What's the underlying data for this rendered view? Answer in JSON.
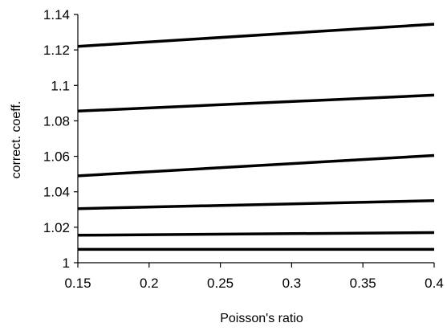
{
  "chart_data": {
    "type": "line",
    "title": "",
    "xlabel": "Poisson's ratio",
    "ylabel": "correct. coeff.",
    "xlim": [
      0.15,
      0.4
    ],
    "ylim": [
      1.0,
      1.14
    ],
    "x_ticks": [
      "0.15",
      "0.2",
      "0.25",
      "0.3",
      "0.35",
      "0.4"
    ],
    "y_ticks": [
      "1",
      "1.02",
      "1.04",
      "1.06",
      "1.08",
      "1.1",
      "1.12",
      "1.14"
    ],
    "grid": false,
    "legend": "none",
    "line_color": "#000000",
    "series": [
      {
        "x": [
          0.15,
          0.4
        ],
        "y": [
          1.122,
          1.1345
        ]
      },
      {
        "x": [
          0.15,
          0.4
        ],
        "y": [
          1.0855,
          1.0945
        ]
      },
      {
        "x": [
          0.15,
          0.4
        ],
        "y": [
          1.049,
          1.0605
        ]
      },
      {
        "x": [
          0.15,
          0.4
        ],
        "y": [
          1.0305,
          1.035
        ]
      },
      {
        "x": [
          0.15,
          0.4
        ],
        "y": [
          1.0155,
          1.017
        ]
      },
      {
        "x": [
          0.15,
          0.4
        ],
        "y": [
          1.0075,
          1.0075
        ]
      }
    ]
  }
}
